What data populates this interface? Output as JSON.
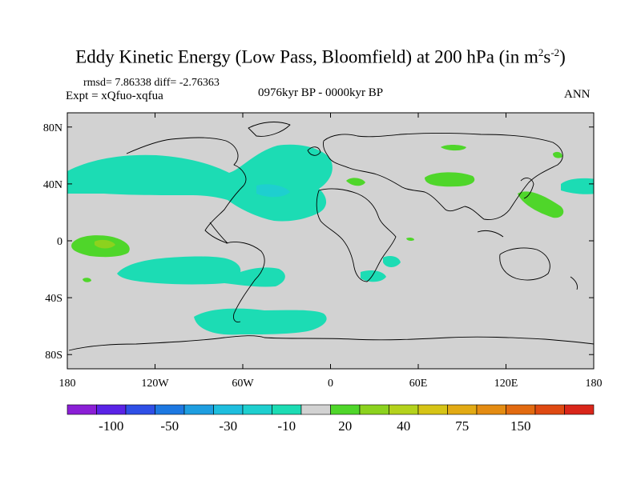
{
  "header": {
    "title_main": "Eddy Kinetic Energy (Low Pass, Bloomfield) at 200 hPa (in m",
    "title_sup1": "2",
    "title_s": "s",
    "title_sup2": "-2",
    "title_close": ")",
    "stats": "rmsd= 7.86338 diff= -2.76363",
    "experiment": "Expt = xQfuo-xqfua",
    "period": "0976kyr BP - 0000kyr BP",
    "season": "ANN"
  },
  "map": {
    "projection": "cylindrical-equidistant",
    "lon_range": [
      -180,
      180
    ],
    "lat_range": [
      -90,
      90
    ],
    "lat_ticks": [
      {
        "value": 80,
        "label": "80N"
      },
      {
        "value": 40,
        "label": "40N"
      },
      {
        "value": 0,
        "label": "0"
      },
      {
        "value": -40,
        "label": "40S"
      },
      {
        "value": -80,
        "label": "80S"
      }
    ],
    "lon_ticks": [
      {
        "value": -180,
        "label": "180"
      },
      {
        "value": -120,
        "label": "120W"
      },
      {
        "value": -60,
        "label": "60W"
      },
      {
        "value": 0,
        "label": "0"
      },
      {
        "value": 60,
        "label": "60E"
      },
      {
        "value": 120,
        "label": "120E"
      },
      {
        "value": 180,
        "label": "180"
      }
    ],
    "background_color": "#d2d2d2"
  },
  "colorbar": {
    "colors": [
      "#8b1fd6",
      "#5a23e6",
      "#2f4fe6",
      "#1d78e1",
      "#1e9ee0",
      "#1ebede",
      "#1ecfcf",
      "#1cdcb4",
      "#d2d2d2",
      "#4fd62a",
      "#8cd21e",
      "#b4d21c",
      "#d6c416",
      "#e2aa14",
      "#e48c12",
      "#e26a10",
      "#df4a12",
      "#d9261a"
    ],
    "label_positions": [
      1,
      3,
      5,
      7,
      9,
      11,
      13,
      15
    ],
    "labels": [
      "-100",
      "-50",
      "-30",
      "-10",
      "20",
      "40",
      "75",
      "150"
    ]
  }
}
